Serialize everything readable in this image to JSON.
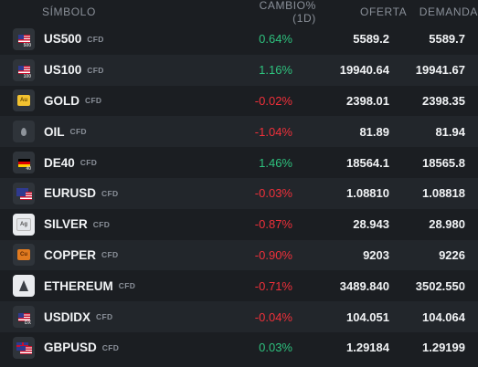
{
  "header": {
    "symbol": "SÍMBOLO",
    "change": "CAMBIO%(1D)",
    "bid": "OFERTA",
    "ask": "DEMANDA"
  },
  "rows": [
    {
      "symbol": "US500",
      "tag": "CFD",
      "change": "0.64%",
      "bid": "5589.2",
      "ask": "5589.7",
      "icon": "us-flag-500-icon"
    },
    {
      "symbol": "US100",
      "tag": "CFD",
      "change": "1.16%",
      "bid": "19940.64",
      "ask": "19941.67",
      "icon": "us-flag-100-icon"
    },
    {
      "symbol": "GOLD",
      "tag": "CFD",
      "change": "-0.02%",
      "bid": "2398.01",
      "ask": "2398.35",
      "icon": "gold-icon"
    },
    {
      "symbol": "OIL",
      "tag": "CFD",
      "change": "-1.04%",
      "bid": "81.89",
      "ask": "81.94",
      "icon": "oil-drop-icon"
    },
    {
      "symbol": "DE40",
      "tag": "CFD",
      "change": "1.46%",
      "bid": "18564.1",
      "ask": "18565.8",
      "icon": "germany-flag-icon"
    },
    {
      "symbol": "EURUSD",
      "tag": "CFD",
      "change": "-0.03%",
      "bid": "1.08810",
      "ask": "1.08818",
      "icon": "eur-usd-flags-icon"
    },
    {
      "symbol": "SILVER",
      "tag": "CFD",
      "change": "-0.87%",
      "bid": "28.943",
      "ask": "28.980",
      "icon": "silver-icon"
    },
    {
      "symbol": "COPPER",
      "tag": "CFD",
      "change": "-0.90%",
      "bid": "9203",
      "ask": "9226",
      "icon": "copper-icon"
    },
    {
      "symbol": "ETHEREUM",
      "tag": "CFD",
      "change": "-0.71%",
      "bid": "3489.840",
      "ask": "3502.550",
      "icon": "ethereum-icon"
    },
    {
      "symbol": "USDIDX",
      "tag": "CFD",
      "change": "-0.04%",
      "bid": "104.051",
      "ask": "104.064",
      "icon": "us-flag-dx-icon"
    },
    {
      "symbol": "GBPUSD",
      "tag": "CFD",
      "change": "0.03%",
      "bid": "1.29184",
      "ask": "1.29199",
      "icon": "gbp-usd-flags-icon"
    }
  ],
  "icon_text": {
    "us500": "500",
    "us100": "100",
    "gold": "Au",
    "de40": "40",
    "silver": "Ag",
    "copper": "Cu",
    "usdidx": "DX"
  },
  "colors": {
    "positive": "#2ec27e",
    "negative": "#f0303a",
    "background": "#1b1e22",
    "row_alt": "#22262b"
  }
}
